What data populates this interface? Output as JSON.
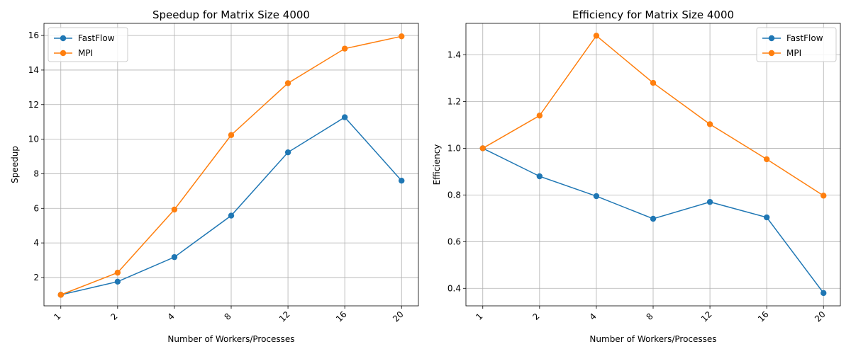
{
  "chart_data": [
    {
      "type": "line",
      "title": "Speedup for Matrix Size 4000",
      "xlabel": "Number of Workers/Processes",
      "ylabel": "Speedup",
      "categories": [
        "1",
        "2",
        "4",
        "8",
        "12",
        "16",
        "20"
      ],
      "series": [
        {
          "name": "FastFlow",
          "color": "#1f77b4",
          "values": [
            1.0,
            1.76,
            3.18,
            5.58,
            9.24,
            11.27,
            7.6
          ]
        },
        {
          "name": "MPI",
          "color": "#ff7f0e",
          "values": [
            1.0,
            2.28,
            5.93,
            10.24,
            13.24,
            15.24,
            15.95
          ]
        }
      ],
      "ylim": [
        0.36,
        16.7
      ],
      "yticks": [
        2,
        4,
        6,
        8,
        10,
        12,
        14,
        16
      ],
      "grid": true,
      "legend_position": "upper-left"
    },
    {
      "type": "line",
      "title": "Efficiency for Matrix Size 4000",
      "xlabel": "Number of Workers/Processes",
      "ylabel": "Efficiency",
      "categories": [
        "1",
        "2",
        "4",
        "8",
        "12",
        "16",
        "20"
      ],
      "series": [
        {
          "name": "FastFlow",
          "color": "#1f77b4",
          "values": [
            1.0,
            0.88,
            0.795,
            0.698,
            0.77,
            0.704,
            0.38
          ]
        },
        {
          "name": "MPI",
          "color": "#ff7f0e",
          "values": [
            1.0,
            1.14,
            1.482,
            1.28,
            1.103,
            0.953,
            0.797
          ]
        }
      ],
      "ylim": [
        0.325,
        1.535
      ],
      "yticks": [
        0.4,
        0.6,
        0.8,
        1.0,
        1.2,
        1.4
      ],
      "ytick_labels": [
        "0.4",
        "0.6",
        "0.8",
        "1.0",
        "1.2",
        "1.4"
      ],
      "grid": true,
      "legend_position": "upper-right"
    }
  ]
}
